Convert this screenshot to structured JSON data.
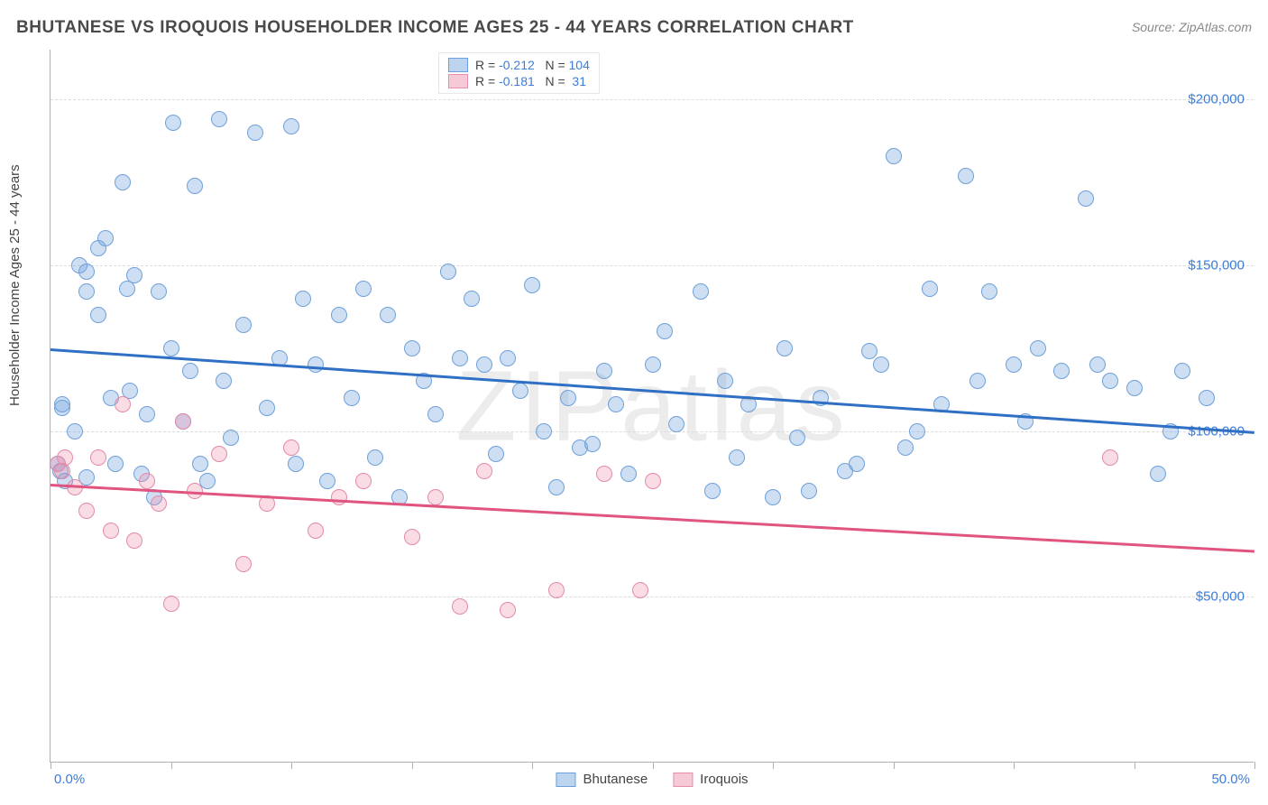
{
  "title": "BHUTANESE VS IROQUOIS HOUSEHOLDER INCOME AGES 25 - 44 YEARS CORRELATION CHART",
  "source": "Source: ZipAtlas.com",
  "watermark": "ZIPatlas",
  "chart": {
    "type": "scatter",
    "y_axis_label": "Householder Income Ages 25 - 44 years",
    "background_color": "#ffffff",
    "grid_color": "#dcdcdc",
    "axis_color": "#b0b0b0",
    "tick_label_color": "#3b7dd8",
    "text_color": "#444444",
    "xlim": [
      0,
      50
    ],
    "ylim": [
      0,
      215000
    ],
    "x_tick_positions": [
      0,
      5,
      10,
      15,
      20,
      25,
      30,
      35,
      40,
      45,
      50
    ],
    "x_tick_labels_shown": {
      "0": "0.0%",
      "50": "50.0%"
    },
    "y_ticks": [
      {
        "v": 50000,
        "label": "$50,000"
      },
      {
        "v": 100000,
        "label": "$100,000"
      },
      {
        "v": 150000,
        "label": "$150,000"
      },
      {
        "v": 200000,
        "label": "$200,000"
      }
    ],
    "series": [
      {
        "name": "Bhutanese",
        "color_fill": "rgba(114,163,224,0.35)",
        "color_stroke": "#6fa0da",
        "swatch_fill": "#bdd4f0",
        "swatch_border": "#6c9fdc",
        "trend_color": "#2f6fc4",
        "R": "-0.212",
        "N": "104",
        "marker_radius": 9,
        "trend": {
          "x1": 0,
          "y1": 125000,
          "x2": 50,
          "y2": 100000
        },
        "points": [
          [
            0.3,
            90000
          ],
          [
            0.4,
            88000
          ],
          [
            0.5,
            107000
          ],
          [
            0.5,
            108000
          ],
          [
            0.6,
            85000
          ],
          [
            1.0,
            100000
          ],
          [
            1.2,
            150000
          ],
          [
            1.5,
            142000
          ],
          [
            1.5,
            148000
          ],
          [
            1.5,
            86000
          ],
          [
            2.0,
            155000
          ],
          [
            2.0,
            135000
          ],
          [
            2.3,
            158000
          ],
          [
            2.5,
            110000
          ],
          [
            2.7,
            90000
          ],
          [
            3.0,
            175000
          ],
          [
            3.2,
            143000
          ],
          [
            3.3,
            112000
          ],
          [
            3.5,
            147000
          ],
          [
            3.8,
            87000
          ],
          [
            4.0,
            105000
          ],
          [
            4.3,
            80000
          ],
          [
            4.5,
            142000
          ],
          [
            5.0,
            125000
          ],
          [
            5.1,
            193000
          ],
          [
            5.5,
            103000
          ],
          [
            5.8,
            118000
          ],
          [
            6.0,
            174000
          ],
          [
            6.2,
            90000
          ],
          [
            6.5,
            85000
          ],
          [
            7.0,
            194000
          ],
          [
            7.2,
            115000
          ],
          [
            7.5,
            98000
          ],
          [
            8.0,
            132000
          ],
          [
            8.5,
            190000
          ],
          [
            9.0,
            107000
          ],
          [
            9.5,
            122000
          ],
          [
            10.0,
            192000
          ],
          [
            10.2,
            90000
          ],
          [
            10.5,
            140000
          ],
          [
            11.0,
            120000
          ],
          [
            11.5,
            85000
          ],
          [
            12.0,
            135000
          ],
          [
            12.5,
            110000
          ],
          [
            13.0,
            143000
          ],
          [
            13.5,
            92000
          ],
          [
            14.0,
            135000
          ],
          [
            14.5,
            80000
          ],
          [
            15.0,
            125000
          ],
          [
            15.5,
            115000
          ],
          [
            16.0,
            105000
          ],
          [
            16.5,
            148000
          ],
          [
            17.0,
            122000
          ],
          [
            17.5,
            140000
          ],
          [
            18.0,
            120000
          ],
          [
            18.5,
            93000
          ],
          [
            19.0,
            122000
          ],
          [
            19.5,
            112000
          ],
          [
            20.0,
            144000
          ],
          [
            20.5,
            100000
          ],
          [
            21.0,
            83000
          ],
          [
            21.5,
            110000
          ],
          [
            22.0,
            95000
          ],
          [
            22.5,
            96000
          ],
          [
            23.0,
            118000
          ],
          [
            23.5,
            108000
          ],
          [
            24.0,
            87000
          ],
          [
            25.0,
            120000
          ],
          [
            25.5,
            130000
          ],
          [
            26.0,
            102000
          ],
          [
            27.0,
            142000
          ],
          [
            27.5,
            82000
          ],
          [
            28.0,
            115000
          ],
          [
            28.5,
            92000
          ],
          [
            29.0,
            108000
          ],
          [
            30.0,
            80000
          ],
          [
            30.5,
            125000
          ],
          [
            31.0,
            98000
          ],
          [
            31.5,
            82000
          ],
          [
            32.0,
            110000
          ],
          [
            33.0,
            88000
          ],
          [
            33.5,
            90000
          ],
          [
            34.0,
            124000
          ],
          [
            34.5,
            120000
          ],
          [
            35.0,
            183000
          ],
          [
            35.5,
            95000
          ],
          [
            36.0,
            100000
          ],
          [
            36.5,
            143000
          ],
          [
            37.0,
            108000
          ],
          [
            38.0,
            177000
          ],
          [
            38.5,
            115000
          ],
          [
            39.0,
            142000
          ],
          [
            40.0,
            120000
          ],
          [
            40.5,
            103000
          ],
          [
            41.0,
            125000
          ],
          [
            42.0,
            118000
          ],
          [
            43.0,
            170000
          ],
          [
            43.5,
            120000
          ],
          [
            44.0,
            115000
          ],
          [
            45.0,
            113000
          ],
          [
            46.0,
            87000
          ],
          [
            46.5,
            100000
          ],
          [
            47.0,
            118000
          ],
          [
            48.0,
            110000
          ]
        ]
      },
      {
        "name": "Iroquois",
        "color_fill": "rgba(238,140,170,0.30)",
        "color_stroke": "#e38aa8",
        "swatch_fill": "#f6c9d6",
        "swatch_border": "#e68fab",
        "trend_color": "#e0557f",
        "R": "-0.181",
        "N": "31",
        "marker_radius": 9,
        "trend": {
          "x1": 0,
          "y1": 84000,
          "x2": 50,
          "y2": 64000
        },
        "points": [
          [
            0.3,
            90000
          ],
          [
            0.5,
            88000
          ],
          [
            0.6,
            92000
          ],
          [
            1.0,
            83000
          ],
          [
            1.5,
            76000
          ],
          [
            2.0,
            92000
          ],
          [
            2.5,
            70000
          ],
          [
            3.0,
            108000
          ],
          [
            3.5,
            67000
          ],
          [
            4.0,
            85000
          ],
          [
            4.5,
            78000
          ],
          [
            5.0,
            48000
          ],
          [
            5.5,
            103000
          ],
          [
            6.0,
            82000
          ],
          [
            7.0,
            93000
          ],
          [
            8.0,
            60000
          ],
          [
            9.0,
            78000
          ],
          [
            10.0,
            95000
          ],
          [
            11.0,
            70000
          ],
          [
            12.0,
            80000
          ],
          [
            13.0,
            85000
          ],
          [
            15.0,
            68000
          ],
          [
            16.0,
            80000
          ],
          [
            17.0,
            47000
          ],
          [
            18.0,
            88000
          ],
          [
            19.0,
            46000
          ],
          [
            21.0,
            52000
          ],
          [
            23.0,
            87000
          ],
          [
            24.5,
            52000
          ],
          [
            25.0,
            85000
          ],
          [
            44.0,
            92000
          ]
        ]
      }
    ],
    "legend_bottom": [
      "Bhutanese",
      "Iroquois"
    ]
  }
}
